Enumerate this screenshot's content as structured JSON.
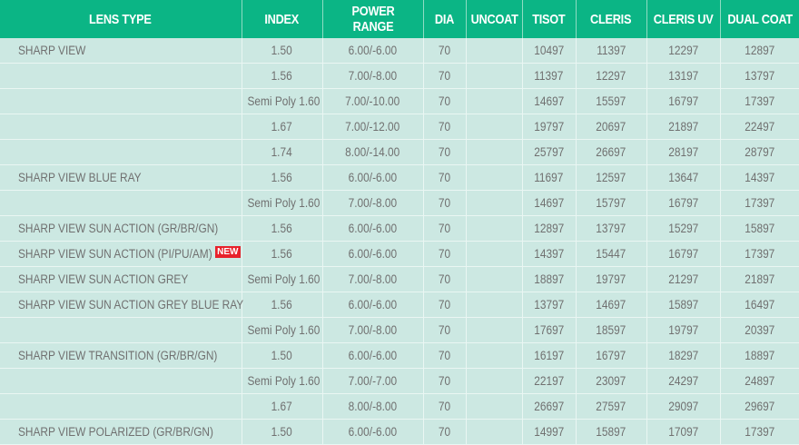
{
  "table": {
    "headers": [
      "LENS TYPE",
      "INDEX",
      "POWER RANGE",
      "DIA",
      "UNCOAT",
      "TISOT",
      "CLERIS",
      "CLERIS UV",
      "DUAL COAT"
    ],
    "new_badge": "NEW",
    "accent_color": "#0bb585",
    "badge_color": "#e8212b",
    "rows": [
      {
        "lens": "SHARP VIEW",
        "index": "1.50",
        "power": "6.00/-6.00",
        "dia": "70",
        "uncoat": "",
        "tisot": "10497",
        "cleris": "11397",
        "cleris_uv": "12297",
        "dual_coat": "12897"
      },
      {
        "lens": "",
        "index": "1.56",
        "power": "7.00/-8.00",
        "dia": "70",
        "uncoat": "",
        "tisot": "11397",
        "cleris": "12297",
        "cleris_uv": "13197",
        "dual_coat": "13797"
      },
      {
        "lens": "",
        "index": "Semi Poly 1.60",
        "power": "7.00/-10.00",
        "dia": "70",
        "uncoat": "",
        "tisot": "14697",
        "cleris": "15597",
        "cleris_uv": "16797",
        "dual_coat": "17397"
      },
      {
        "lens": "",
        "index": "1.67",
        "power": "7.00/-12.00",
        "dia": "70",
        "uncoat": "",
        "tisot": "19797",
        "cleris": "20697",
        "cleris_uv": "21897",
        "dual_coat": "22497"
      },
      {
        "lens": "",
        "index": "1.74",
        "power": "8.00/-14.00",
        "dia": "70",
        "uncoat": "",
        "tisot": "25797",
        "cleris": "26697",
        "cleris_uv": "28197",
        "dual_coat": "28797"
      },
      {
        "lens": "SHARP VIEW BLUE RAY",
        "index": "1.56",
        "power": "6.00/-6.00",
        "dia": "70",
        "uncoat": "",
        "tisot": "11697",
        "cleris": "12597",
        "cleris_uv": "13647",
        "dual_coat": "14397"
      },
      {
        "lens": "",
        "index": "Semi Poly 1.60",
        "power": "7.00/-8.00",
        "dia": "70",
        "uncoat": "",
        "tisot": "14697",
        "cleris": "15797",
        "cleris_uv": "16797",
        "dual_coat": "17397"
      },
      {
        "lens": "SHARP VIEW SUN ACTION (GR/BR/GN)",
        "index": "1.56",
        "power": "6.00/-6.00",
        "dia": "70",
        "uncoat": "",
        "tisot": "12897",
        "cleris": "13797",
        "cleris_uv": "15297",
        "dual_coat": "15897"
      },
      {
        "lens": "SHARP VIEW SUN ACTION (PI/PU/AM)",
        "is_new": true,
        "index": "1.56",
        "power": "6.00/-6.00",
        "dia": "70",
        "uncoat": "",
        "tisot": "14397",
        "cleris": "15447",
        "cleris_uv": "16797",
        "dual_coat": "17397"
      },
      {
        "lens": "SHARP VIEW SUN ACTION GREY",
        "index": "Semi Poly 1.60",
        "power": "7.00/-8.00",
        "dia": "70",
        "uncoat": "",
        "tisot": "18897",
        "cleris": "19797",
        "cleris_uv": "21297",
        "dual_coat": "21897"
      },
      {
        "lens": "SHARP VIEW SUN ACTION GREY BLUE RAY",
        "index": "1.56",
        "power": "6.00/-6.00",
        "dia": "70",
        "uncoat": "",
        "tisot": "13797",
        "cleris": "14697",
        "cleris_uv": "15897",
        "dual_coat": "16497"
      },
      {
        "lens": "",
        "index": "Semi Poly 1.60",
        "power": "7.00/-8.00",
        "dia": "70",
        "uncoat": "",
        "tisot": "17697",
        "cleris": "18597",
        "cleris_uv": "19797",
        "dual_coat": "20397"
      },
      {
        "lens": "SHARP VIEW TRANSITION (GR/BR/GN)",
        "index": "1.50",
        "power": "6.00/-6.00",
        "dia": "70",
        "uncoat": "",
        "tisot": "16197",
        "cleris": "16797",
        "cleris_uv": "18297",
        "dual_coat": "18897"
      },
      {
        "lens": "",
        "index": "Semi Poly 1.60",
        "power": "7.00/-7.00",
        "dia": "70",
        "uncoat": "",
        "tisot": "22197",
        "cleris": "23097",
        "cleris_uv": "24297",
        "dual_coat": "24897"
      },
      {
        "lens": "",
        "index": "1.67",
        "power": "8.00/-8.00",
        "dia": "70",
        "uncoat": "",
        "tisot": "26697",
        "cleris": "27597",
        "cleris_uv": "29097",
        "dual_coat": "29697"
      },
      {
        "lens": "SHARP VIEW POLARIZED (GR/BR/GN)",
        "index": "1.50",
        "power": "6.00/-6.00",
        "dia": "70",
        "uncoat": "",
        "tisot": "14997",
        "cleris": "15897",
        "cleris_uv": "17097",
        "dual_coat": "17397"
      }
    ]
  }
}
